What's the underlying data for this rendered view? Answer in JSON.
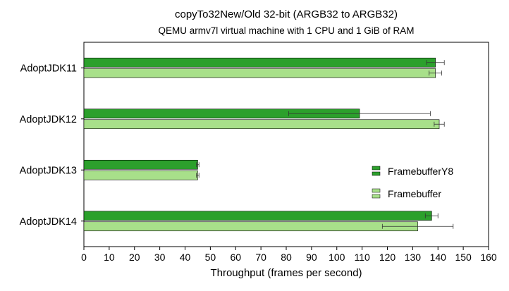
{
  "chart_data": {
    "type": "bar",
    "orientation": "horizontal",
    "title": "copyTo32New/Old 32-bit (ARGB32 to ARGB32)",
    "subtitle": "QEMU armv7l virtual machine with 1 CPU and 1 GiB of RAM",
    "xlabel": "Throughput (frames per second)",
    "ylabel": "",
    "xlim": [
      0,
      160
    ],
    "xticks": [
      0,
      10,
      20,
      30,
      40,
      50,
      60,
      70,
      80,
      90,
      100,
      110,
      120,
      130,
      140,
      150,
      160
    ],
    "categories": [
      "AdoptJDK11",
      "AdoptJDK12",
      "AdoptJDK13",
      "AdoptJDK14"
    ],
    "series": [
      {
        "name": "FramebufferY8",
        "color": "#2ca02c",
        "values": [
          139,
          109,
          45,
          137.5
        ],
        "error_low": [
          135.5,
          81,
          44.5,
          135
        ],
        "error_high": [
          142.5,
          137,
          45.5,
          140
        ]
      },
      {
        "name": "Framebuffer",
        "color": "#a8e08a",
        "values": [
          139,
          140.5,
          45,
          132
        ],
        "error_low": [
          136.5,
          138.5,
          44.5,
          118
        ],
        "error_high": [
          141.5,
          142.5,
          45.5,
          146
        ]
      }
    ],
    "legend_position": "right",
    "grid": false
  }
}
